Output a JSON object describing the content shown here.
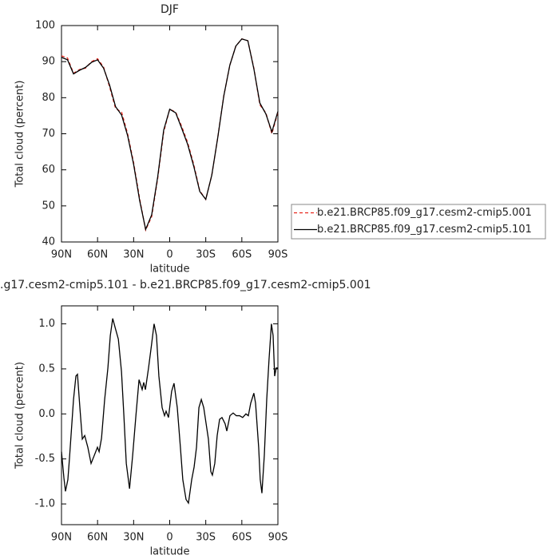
{
  "chart_data": [
    {
      "type": "line",
      "title": "DJF",
      "xlabel": "latitude",
      "ylabel": "Total cloud (percent)",
      "x": [
        90,
        85,
        80,
        75,
        70,
        65,
        60,
        55,
        50,
        45,
        40,
        35,
        30,
        25,
        20,
        15,
        10,
        5,
        0,
        -5,
        -10,
        -15,
        -20,
        -25,
        -30,
        -35,
        -40,
        -45,
        -50,
        -55,
        -60,
        -65,
        -70,
        -75,
        -80,
        -85,
        -90
      ],
      "series": [
        {
          "name": "b.e21.BRCP85.f09_g17.cesm2-cmip5.001",
          "color": "#e8251b",
          "style": "dashed",
          "values": [
            91.6,
            91.0,
            86.8,
            87.8,
            88.2,
            90.0,
            90.8,
            88.5,
            83.0,
            77.0,
            76.0,
            70.0,
            62.0,
            52.0,
            43.3,
            47.0,
            57.5,
            70.5,
            76.8,
            76.0,
            72.0,
            67.5,
            61.5,
            54.2,
            51.8,
            58.5,
            69.0,
            80.5,
            89.0,
            94.3,
            96.3,
            95.8,
            88.2,
            78.0,
            75.8,
            70.0,
            76.0
          ]
        },
        {
          "name": "b.e21.BRCP85.f09_g17.cesm2-cmip5.101",
          "color": "#000000",
          "style": "solid",
          "values": [
            91.2,
            90.5,
            86.6,
            87.6,
            88.4,
            89.8,
            90.5,
            88.2,
            83.5,
            77.5,
            75.2,
            69.5,
            61.5,
            51.5,
            43.5,
            47.5,
            58.0,
            71.0,
            76.8,
            75.8,
            71.5,
            67.0,
            61.0,
            54.0,
            51.8,
            58.5,
            69.0,
            80.5,
            89.0,
            94.3,
            96.3,
            95.8,
            88.0,
            78.5,
            75.5,
            70.5,
            76.2
          ]
        }
      ],
      "xlim": [
        90,
        -90
      ],
      "xticks": [
        {
          "value": 90,
          "label": "90N"
        },
        {
          "value": 60,
          "label": "60N"
        },
        {
          "value": 30,
          "label": "30N"
        },
        0,
        {
          "value": -30,
          "label": "30S"
        },
        {
          "value": -60,
          "label": "60S"
        },
        {
          "value": -90,
          "label": "90S"
        }
      ],
      "ylim": [
        40,
        100
      ],
      "yticks": [
        40,
        50,
        60,
        70,
        80,
        90,
        100
      ],
      "legend": "right"
    },
    {
      "type": "line",
      "title": ".g17.cesm2-cmip5.101 - b.e21.BRCP85.f09_g17.cesm2-cmip5.001",
      "xlabel": "latitude",
      "ylabel": "Total cloud (percent)",
      "x": [
        90.0,
        88.0,
        86.7,
        84.7,
        83.4,
        80.0,
        78.0,
        76.7,
        74.7,
        72.7,
        70.7,
        68.1,
        65.4,
        62.7,
        60.1,
        58.7,
        56.7,
        54.1,
        51.4,
        49.4,
        47.4,
        45.4,
        42.7,
        40.1,
        38.1,
        36.1,
        33.4,
        30.8,
        28.1,
        25.5,
        22.9,
        21.6,
        20.2,
        17.6,
        15.0,
        13.0,
        11.0,
        9.0,
        6.3,
        4.3,
        3.0,
        1.0,
        -1.6,
        -3.6,
        -6.3,
        -8.9,
        -10.9,
        -13.6,
        -15.6,
        -18.3,
        -20.3,
        -22.3,
        -24.3,
        -26.3,
        -28.3,
        -30.3,
        -32.2,
        -34.2,
        -35.5,
        -37.5,
        -39.5,
        -41.5,
        -43.5,
        -46.1,
        -47.5,
        -50.1,
        -52.8,
        -55.4,
        -58.1,
        -60.7,
        -63.4,
        -65.4,
        -67.4,
        -70.0,
        -71.4,
        -74.0,
        -75.3,
        -76.7,
        -78.7,
        -80.7,
        -82.6,
        -84.6,
        -86.0,
        -87.3,
        -88.6,
        -90.0
      ],
      "values": [
        -0.42,
        -0.71,
        -0.86,
        -0.73,
        -0.5,
        0.16,
        0.42,
        0.44,
        0.07,
        -0.28,
        -0.24,
        -0.37,
        -0.55,
        -0.46,
        -0.37,
        -0.42,
        -0.27,
        0.16,
        0.51,
        0.87,
        1.06,
        0.96,
        0.83,
        0.47,
        -0.02,
        -0.55,
        -0.83,
        -0.46,
        -0.02,
        0.38,
        0.27,
        0.35,
        0.27,
        0.51,
        0.78,
        1.0,
        0.87,
        0.42,
        0.07,
        -0.02,
        0.03,
        -0.04,
        0.25,
        0.34,
        0.07,
        -0.37,
        -0.73,
        -0.95,
        -0.99,
        -0.73,
        -0.59,
        -0.37,
        0.07,
        0.16,
        0.07,
        -0.11,
        -0.28,
        -0.64,
        -0.68,
        -0.55,
        -0.24,
        -0.06,
        -0.04,
        -0.11,
        -0.19,
        -0.02,
        0.01,
        -0.02,
        -0.02,
        -0.04,
        0.0,
        -0.02,
        0.12,
        0.23,
        0.12,
        -0.37,
        -0.73,
        -0.88,
        -0.46,
        0.16,
        0.6,
        1.0,
        0.87,
        0.42,
        0.51,
        0.51
      ],
      "color": "#000000",
      "xlim": [
        90,
        -90
      ],
      "xticks": [
        {
          "value": 90,
          "label": "90N"
        },
        {
          "value": 60,
          "label": "60N"
        },
        {
          "value": 30,
          "label": "30N"
        },
        0,
        {
          "value": -30,
          "label": "30S"
        },
        {
          "value": -60,
          "label": "60S"
        },
        {
          "value": -90,
          "label": "90S"
        }
      ],
      "ylim": [
        -1.23,
        1.2
      ],
      "yticks": [
        {
          "value": -1,
          "label": "-1.0"
        },
        {
          "value": -0.5,
          "label": "-0.5"
        },
        {
          "value": 0,
          "label": "0.0"
        },
        0.5,
        {
          "value": 1,
          "label": "1.0"
        }
      ]
    }
  ]
}
